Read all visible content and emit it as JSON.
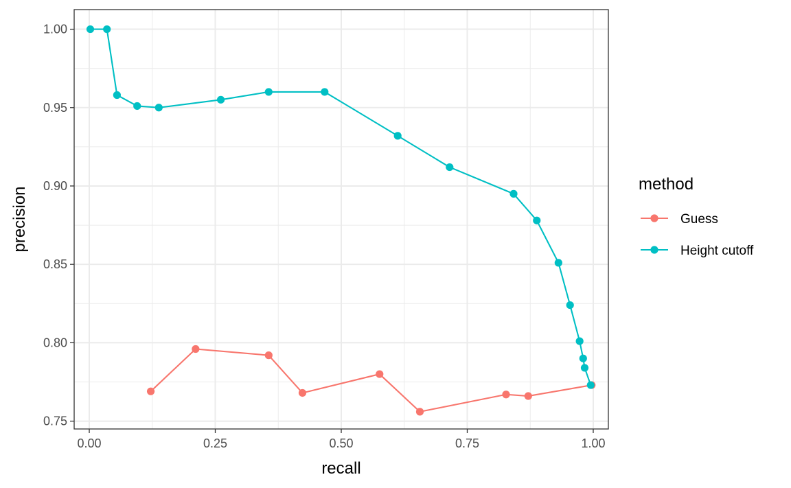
{
  "chart_data": {
    "type": "line",
    "title": "",
    "xlabel": "recall",
    "ylabel": "precision",
    "xlim": [
      -0.03,
      1.03
    ],
    "ylim": [
      0.745,
      1.0125
    ],
    "x_ticks": [
      0.0,
      0.25,
      0.5,
      0.75,
      1.0
    ],
    "x_tick_labels": [
      "0.00",
      "0.25",
      "0.50",
      "0.75",
      "1.00"
    ],
    "y_ticks": [
      0.75,
      0.8,
      0.85,
      0.9,
      0.95,
      1.0
    ],
    "y_tick_labels": [
      "0.75",
      "0.80",
      "0.85",
      "0.90",
      "0.95",
      "1.00"
    ],
    "x_minor_ticks": [
      0.125,
      0.375,
      0.625,
      0.875
    ],
    "y_minor_ticks": [
      0.775,
      0.825,
      0.875,
      0.925,
      0.975
    ],
    "grid": true,
    "legend_title": "method",
    "legend_position": "right",
    "series": [
      {
        "name": "Guess",
        "color": "#F8766D",
        "points": [
          {
            "x": 0.122,
            "y": 0.769
          },
          {
            "x": 0.211,
            "y": 0.796
          },
          {
            "x": 0.356,
            "y": 0.792
          },
          {
            "x": 0.423,
            "y": 0.768
          },
          {
            "x": 0.576,
            "y": 0.78
          },
          {
            "x": 0.656,
            "y": 0.756
          },
          {
            "x": 0.827,
            "y": 0.767
          },
          {
            "x": 0.871,
            "y": 0.766
          },
          {
            "x": 0.997,
            "y": 0.773
          }
        ]
      },
      {
        "name": "Height cutoff",
        "color": "#00BFC4",
        "points": [
          {
            "x": 0.002,
            "y": 1.0
          },
          {
            "x": 0.035,
            "y": 1.0
          },
          {
            "x": 0.055,
            "y": 0.958
          },
          {
            "x": 0.095,
            "y": 0.951
          },
          {
            "x": 0.138,
            "y": 0.95
          },
          {
            "x": 0.261,
            "y": 0.955
          },
          {
            "x": 0.356,
            "y": 0.96
          },
          {
            "x": 0.467,
            "y": 0.96
          },
          {
            "x": 0.612,
            "y": 0.932
          },
          {
            "x": 0.715,
            "y": 0.912
          },
          {
            "x": 0.842,
            "y": 0.895
          },
          {
            "x": 0.888,
            "y": 0.878
          },
          {
            "x": 0.931,
            "y": 0.851
          },
          {
            "x": 0.954,
            "y": 0.824
          },
          {
            "x": 0.973,
            "y": 0.801
          },
          {
            "x": 0.98,
            "y": 0.79
          },
          {
            "x": 0.983,
            "y": 0.784
          },
          {
            "x": 0.995,
            "y": 0.773
          }
        ]
      }
    ]
  }
}
